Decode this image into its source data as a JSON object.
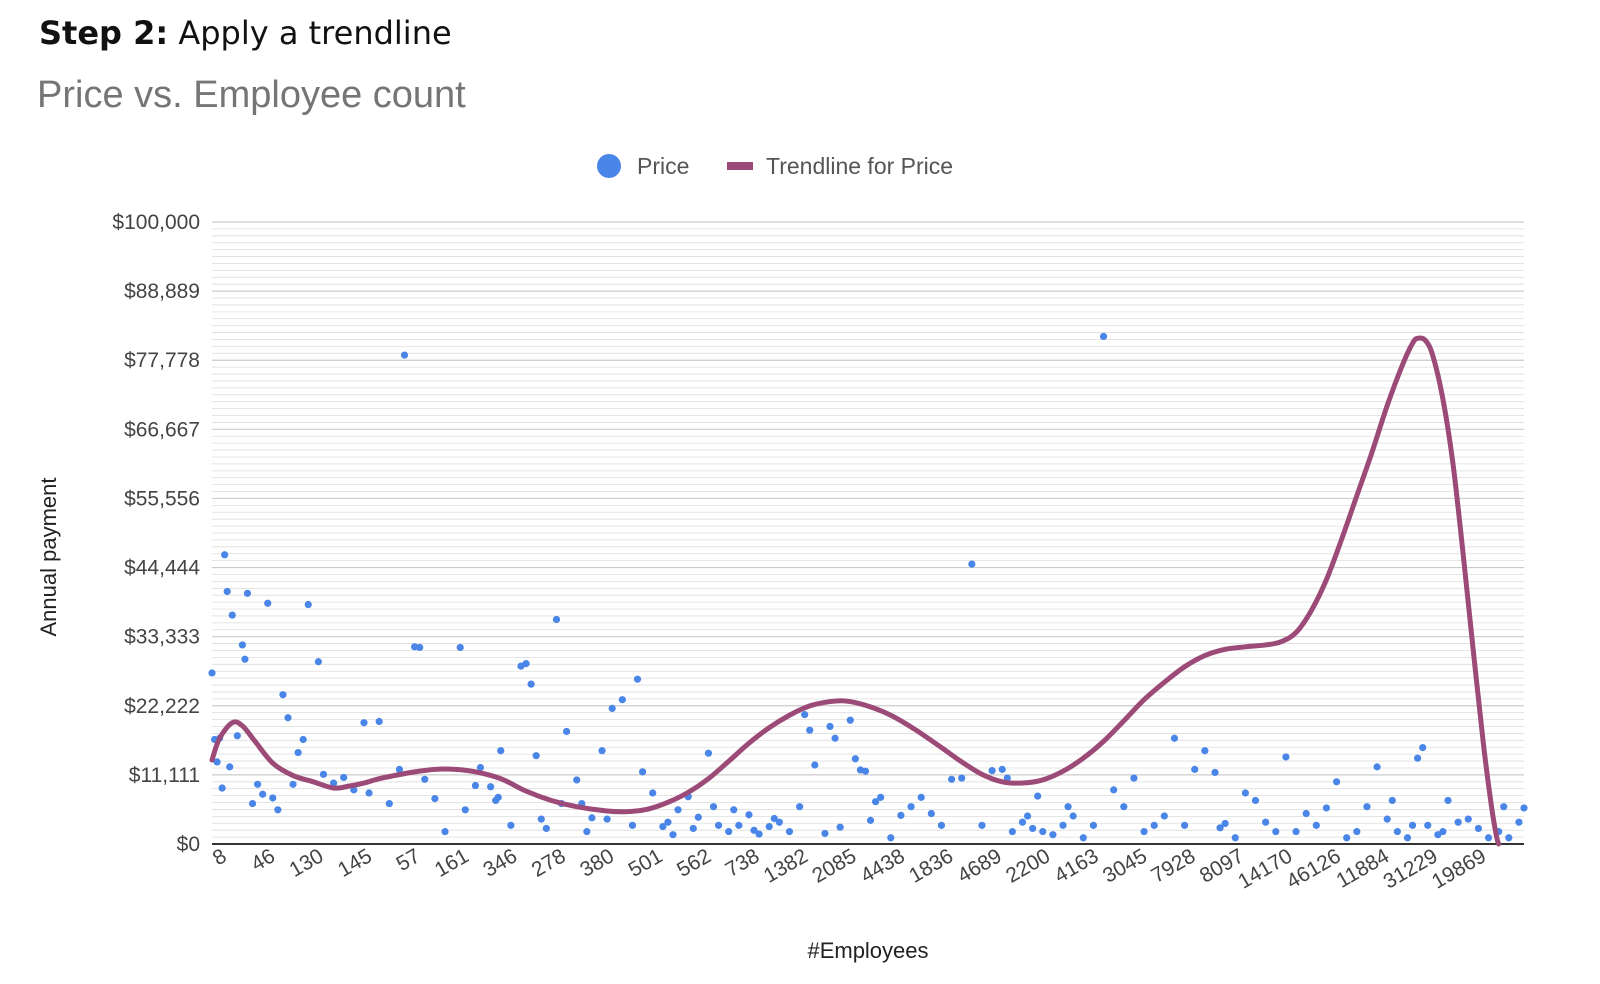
{
  "heading": {
    "step_label": "Step 2:",
    "step_text": " Apply a trendline"
  },
  "chart_data": {
    "type": "scatter",
    "title": "Price vs. Employee count",
    "xlabel": "#Employees",
    "ylabel": "Annual payment",
    "ylim": [
      0,
      100000
    ],
    "y_ticks": [
      "$0",
      "$11,111",
      "$22,222",
      "$33,333",
      "$44,444",
      "$55,556",
      "$66,667",
      "$77,778",
      "$88,889",
      "$100,000"
    ],
    "x_tick_labels": [
      "8",
      "46",
      "130",
      "145",
      "57",
      "161",
      "346",
      "278",
      "380",
      "501",
      "562",
      "738",
      "1382",
      "2085",
      "4438",
      "1836",
      "4689",
      "2200",
      "4163",
      "3045",
      "7928",
      "8097",
      "14170",
      "46126",
      "11884",
      "31229",
      "19869"
    ],
    "x_count": 260,
    "legend": {
      "position": "top",
      "entries": [
        "Price",
        "Trendline for Price"
      ]
    },
    "colors": {
      "points": "#4a86e8",
      "trendline": "#9c4a77",
      "grid": "#dddddd"
    },
    "series": [
      {
        "name": "Price",
        "type": "scatter",
        "points": [
          [
            0,
            27500
          ],
          [
            0.5,
            16800
          ],
          [
            1,
            13200
          ],
          [
            1.5,
            17000
          ],
          [
            2,
            9000
          ],
          [
            2.5,
            46500
          ],
          [
            3,
            40600
          ],
          [
            3.5,
            12400
          ],
          [
            4,
            36800
          ],
          [
            5,
            17400
          ],
          [
            6,
            32000
          ],
          [
            6.5,
            29700
          ],
          [
            7,
            40300
          ],
          [
            8,
            6500
          ],
          [
            9,
            9600
          ],
          [
            10,
            8000
          ],
          [
            11,
            38700
          ],
          [
            12,
            7400
          ],
          [
            13,
            5500
          ],
          [
            14,
            24000
          ],
          [
            15,
            20300
          ],
          [
            16,
            9600
          ],
          [
            17,
            14700
          ],
          [
            18,
            16800
          ],
          [
            19,
            38500
          ],
          [
            21,
            29300
          ],
          [
            22,
            11200
          ],
          [
            24,
            9800
          ],
          [
            26,
            10700
          ],
          [
            28,
            8700
          ],
          [
            30,
            19500
          ],
          [
            31,
            8200
          ],
          [
            33,
            19700
          ],
          [
            35,
            6500
          ],
          [
            37,
            12000
          ],
          [
            38,
            78600
          ],
          [
            40,
            31700
          ],
          [
            41,
            31600
          ],
          [
            42,
            10400
          ],
          [
            44,
            7300
          ],
          [
            46,
            2000
          ],
          [
            49,
            31600
          ],
          [
            50,
            5500
          ],
          [
            52,
            9400
          ],
          [
            53,
            12300
          ],
          [
            55,
            9200
          ],
          [
            56,
            7000
          ],
          [
            57,
            15000
          ],
          [
            59,
            3000
          ],
          [
            61,
            28600
          ],
          [
            62,
            29000
          ],
          [
            63,
            25700
          ],
          [
            64,
            14200
          ],
          [
            66,
            2500
          ],
          [
            68,
            36100
          ],
          [
            70,
            18100
          ],
          [
            72,
            10300
          ],
          [
            73,
            6500
          ],
          [
            75,
            4200
          ],
          [
            77,
            15000
          ],
          [
            79,
            21800
          ],
          [
            81,
            23200
          ],
          [
            84,
            26500
          ],
          [
            85,
            11600
          ],
          [
            87,
            8200
          ],
          [
            89,
            2800
          ],
          [
            90,
            3500
          ],
          [
            92,
            5500
          ],
          [
            94,
            7600
          ],
          [
            96,
            4300
          ],
          [
            98,
            14600
          ],
          [
            100,
            3000
          ],
          [
            102,
            2000
          ],
          [
            104,
            3000
          ],
          [
            106,
            4700
          ],
          [
            108,
            1600
          ],
          [
            110,
            2800
          ],
          [
            112,
            3500
          ],
          [
            114,
            2000
          ],
          [
            116,
            6000
          ],
          [
            117,
            20800
          ],
          [
            118,
            18300
          ],
          [
            119,
            12700
          ],
          [
            121,
            1700
          ],
          [
            122,
            18900
          ],
          [
            123,
            17000
          ],
          [
            124,
            2700
          ],
          [
            126,
            19900
          ],
          [
            127,
            13700
          ],
          [
            128,
            11900
          ],
          [
            129,
            11700
          ],
          [
            130,
            3800
          ],
          [
            131,
            6800
          ],
          [
            132,
            7500
          ],
          [
            134,
            1000
          ],
          [
            136,
            4600
          ],
          [
            138,
            6000
          ],
          [
            140,
            7500
          ],
          [
            142,
            4900
          ],
          [
            144,
            3000
          ],
          [
            146,
            10400
          ],
          [
            148,
            10600
          ],
          [
            150,
            45000
          ],
          [
            152,
            3000
          ],
          [
            154,
            11800
          ],
          [
            156,
            12000
          ],
          [
            157,
            10600
          ],
          [
            158,
            2000
          ],
          [
            160,
            3500
          ],
          [
            161,
            4500
          ],
          [
            162,
            2500
          ],
          [
            163,
            7700
          ],
          [
            164,
            2000
          ],
          [
            166,
            1500
          ],
          [
            168,
            3000
          ],
          [
            169,
            6000
          ],
          [
            170,
            4500
          ],
          [
            172,
            1000
          ],
          [
            174,
            3000
          ],
          [
            176,
            81600
          ],
          [
            178,
            8700
          ],
          [
            180,
            6000
          ],
          [
            182,
            10600
          ],
          [
            184,
            2000
          ],
          [
            186,
            3000
          ],
          [
            188,
            4500
          ],
          [
            190,
            17000
          ],
          [
            192,
            3000
          ],
          [
            194,
            12000
          ],
          [
            196,
            15000
          ],
          [
            198,
            11500
          ],
          [
            199,
            2600
          ],
          [
            200,
            3300
          ],
          [
            202,
            1000
          ],
          [
            204,
            8200
          ],
          [
            206,
            7000
          ],
          [
            208,
            3500
          ],
          [
            210,
            2000
          ],
          [
            212,
            14000
          ],
          [
            214,
            2000
          ],
          [
            216,
            4900
          ],
          [
            218,
            3000
          ],
          [
            220,
            5800
          ],
          [
            222,
            10000
          ],
          [
            224,
            1000
          ],
          [
            226,
            2000
          ],
          [
            228,
            6000
          ],
          [
            230,
            12400
          ],
          [
            232,
            4000
          ],
          [
            233,
            7000
          ],
          [
            234,
            2000
          ],
          [
            236,
            1000
          ],
          [
            237,
            3000
          ],
          [
            238,
            13800
          ],
          [
            239,
            15500
          ],
          [
            240,
            3000
          ],
          [
            242,
            1500
          ],
          [
            243,
            2000
          ],
          [
            244,
            7000
          ],
          [
            246,
            3500
          ],
          [
            248,
            4000
          ],
          [
            250,
            2500
          ],
          [
            252,
            1000
          ],
          [
            254,
            2000
          ],
          [
            255,
            6000
          ],
          [
            256,
            1000
          ],
          [
            258,
            3500
          ],
          [
            259,
            5800
          ],
          [
            56.5,
            7500
          ],
          [
            65,
            4000
          ],
          [
            69,
            6500
          ],
          [
            74,
            2000
          ],
          [
            78,
            4000
          ],
          [
            83,
            3000
          ],
          [
            91,
            1500
          ],
          [
            95,
            2500
          ],
          [
            99,
            6000
          ],
          [
            103,
            5500
          ],
          [
            107,
            2200
          ],
          [
            111,
            4100
          ]
        ]
      },
      {
        "name": "Trendline for Price",
        "type": "line",
        "points": [
          [
            0,
            13500
          ],
          [
            1.5,
            17000
          ],
          [
            4,
            19500
          ],
          [
            6,
            19000
          ],
          [
            8.5,
            16500
          ],
          [
            12,
            13000
          ],
          [
            16,
            11000
          ],
          [
            20,
            10000
          ],
          [
            24,
            9000
          ],
          [
            27,
            9300
          ],
          [
            30,
            9800
          ],
          [
            33,
            10500
          ],
          [
            36,
            11000
          ],
          [
            40,
            11600
          ],
          [
            44,
            12000
          ],
          [
            48,
            12000
          ],
          [
            52,
            11600
          ],
          [
            57,
            10500
          ],
          [
            62,
            8500
          ],
          [
            67,
            7000
          ],
          [
            72,
            6000
          ],
          [
            78,
            5300
          ],
          [
            82,
            5200
          ],
          [
            86,
            5600
          ],
          [
            90,
            6700
          ],
          [
            94,
            8300
          ],
          [
            98,
            10500
          ],
          [
            102,
            13300
          ],
          [
            106,
            16200
          ],
          [
            110,
            18700
          ],
          [
            114,
            20700
          ],
          [
            118,
            22200
          ],
          [
            122,
            22900
          ],
          [
            125,
            23000
          ],
          [
            129,
            22300
          ],
          [
            134,
            20700
          ],
          [
            139,
            18300
          ],
          [
            144,
            15500
          ],
          [
            148,
            13200
          ],
          [
            152,
            11200
          ],
          [
            156,
            10000
          ],
          [
            160,
            9800
          ],
          [
            164,
            10300
          ],
          [
            168,
            11700
          ],
          [
            172,
            13800
          ],
          [
            176,
            16500
          ],
          [
            180,
            19800
          ],
          [
            184,
            23200
          ],
          [
            188,
            26000
          ],
          [
            192,
            28500
          ],
          [
            196,
            30300
          ],
          [
            200,
            31300
          ],
          [
            204,
            31700
          ],
          [
            208,
            32000
          ],
          [
            211,
            32500
          ],
          [
            214,
            34000
          ],
          [
            217,
            37500
          ],
          [
            220,
            42500
          ],
          [
            223,
            49000
          ],
          [
            226,
            56000
          ],
          [
            229,
            63000
          ],
          [
            232,
            70500
          ],
          [
            235,
            77000
          ],
          [
            237,
            80500
          ],
          [
            238,
            81300
          ],
          [
            239.5,
            81000
          ],
          [
            241,
            78500
          ],
          [
            243,
            71500
          ],
          [
            245,
            61000
          ],
          [
            247,
            46500
          ],
          [
            249,
            31000
          ],
          [
            251,
            16000
          ],
          [
            252.5,
            6500
          ],
          [
            253.5,
            1500
          ],
          [
            254,
            0
          ]
        ]
      }
    ]
  }
}
